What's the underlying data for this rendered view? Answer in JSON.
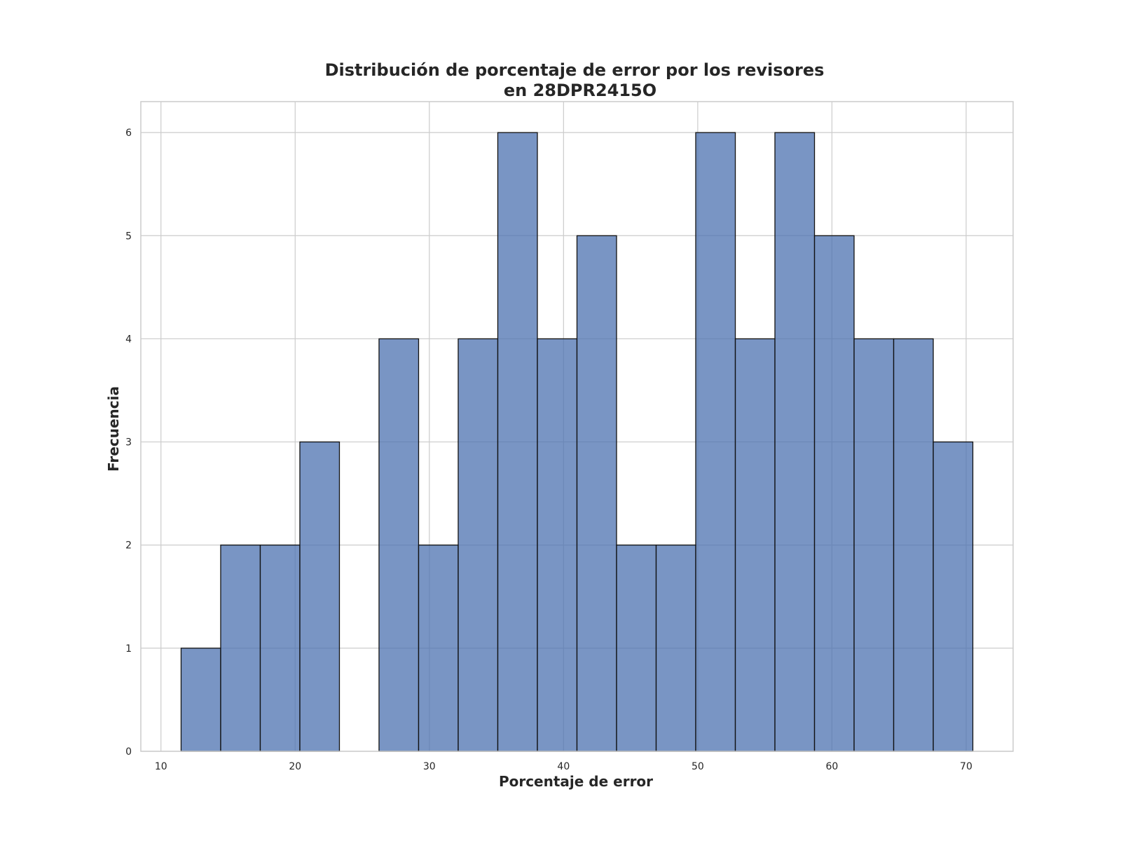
{
  "chart_data": {
    "type": "bar",
    "title_lines": [
      "Distribución de porcentaje de error por los revisores",
      "en 28DPR2415O"
    ],
    "xlabel": "Porcentaje de error",
    "ylabel": "Frecuencia",
    "xlim": [
      8.5,
      73.5
    ],
    "ylim": [
      0,
      6.3
    ],
    "xticks": [
      10,
      20,
      30,
      40,
      50,
      60,
      70
    ],
    "yticks": [
      0,
      1,
      2,
      3,
      4,
      5,
      6
    ],
    "grid": true,
    "bar_color": "#4c72b0",
    "edge_color": "#111111",
    "bins": [
      {
        "x0": 11.5,
        "x1": 14.45,
        "count": 1
      },
      {
        "x0": 14.45,
        "x1": 17.4,
        "count": 2
      },
      {
        "x0": 17.4,
        "x1": 20.35,
        "count": 2
      },
      {
        "x0": 20.35,
        "x1": 23.3,
        "count": 3
      },
      {
        "x0": 23.3,
        "x1": 26.25,
        "count": 0
      },
      {
        "x0": 26.25,
        "x1": 29.2,
        "count": 4
      },
      {
        "x0": 29.2,
        "x1": 32.15,
        "count": 2
      },
      {
        "x0": 32.15,
        "x1": 35.1,
        "count": 4
      },
      {
        "x0": 35.1,
        "x1": 38.05,
        "count": 6
      },
      {
        "x0": 38.05,
        "x1": 41.0,
        "count": 4
      },
      {
        "x0": 41.0,
        "x1": 43.95,
        "count": 5
      },
      {
        "x0": 43.95,
        "x1": 46.9,
        "count": 2
      },
      {
        "x0": 46.9,
        "x1": 49.85,
        "count": 2
      },
      {
        "x0": 49.85,
        "x1": 52.8,
        "count": 6
      },
      {
        "x0": 52.8,
        "x1": 55.75,
        "count": 4
      },
      {
        "x0": 55.75,
        "x1": 58.7,
        "count": 6
      },
      {
        "x0": 58.7,
        "x1": 61.65,
        "count": 5
      },
      {
        "x0": 61.65,
        "x1": 64.6,
        "count": 4
      },
      {
        "x0": 64.6,
        "x1": 67.55,
        "count": 4
      },
      {
        "x0": 67.55,
        "x1": 70.5,
        "count": 3
      }
    ]
  }
}
